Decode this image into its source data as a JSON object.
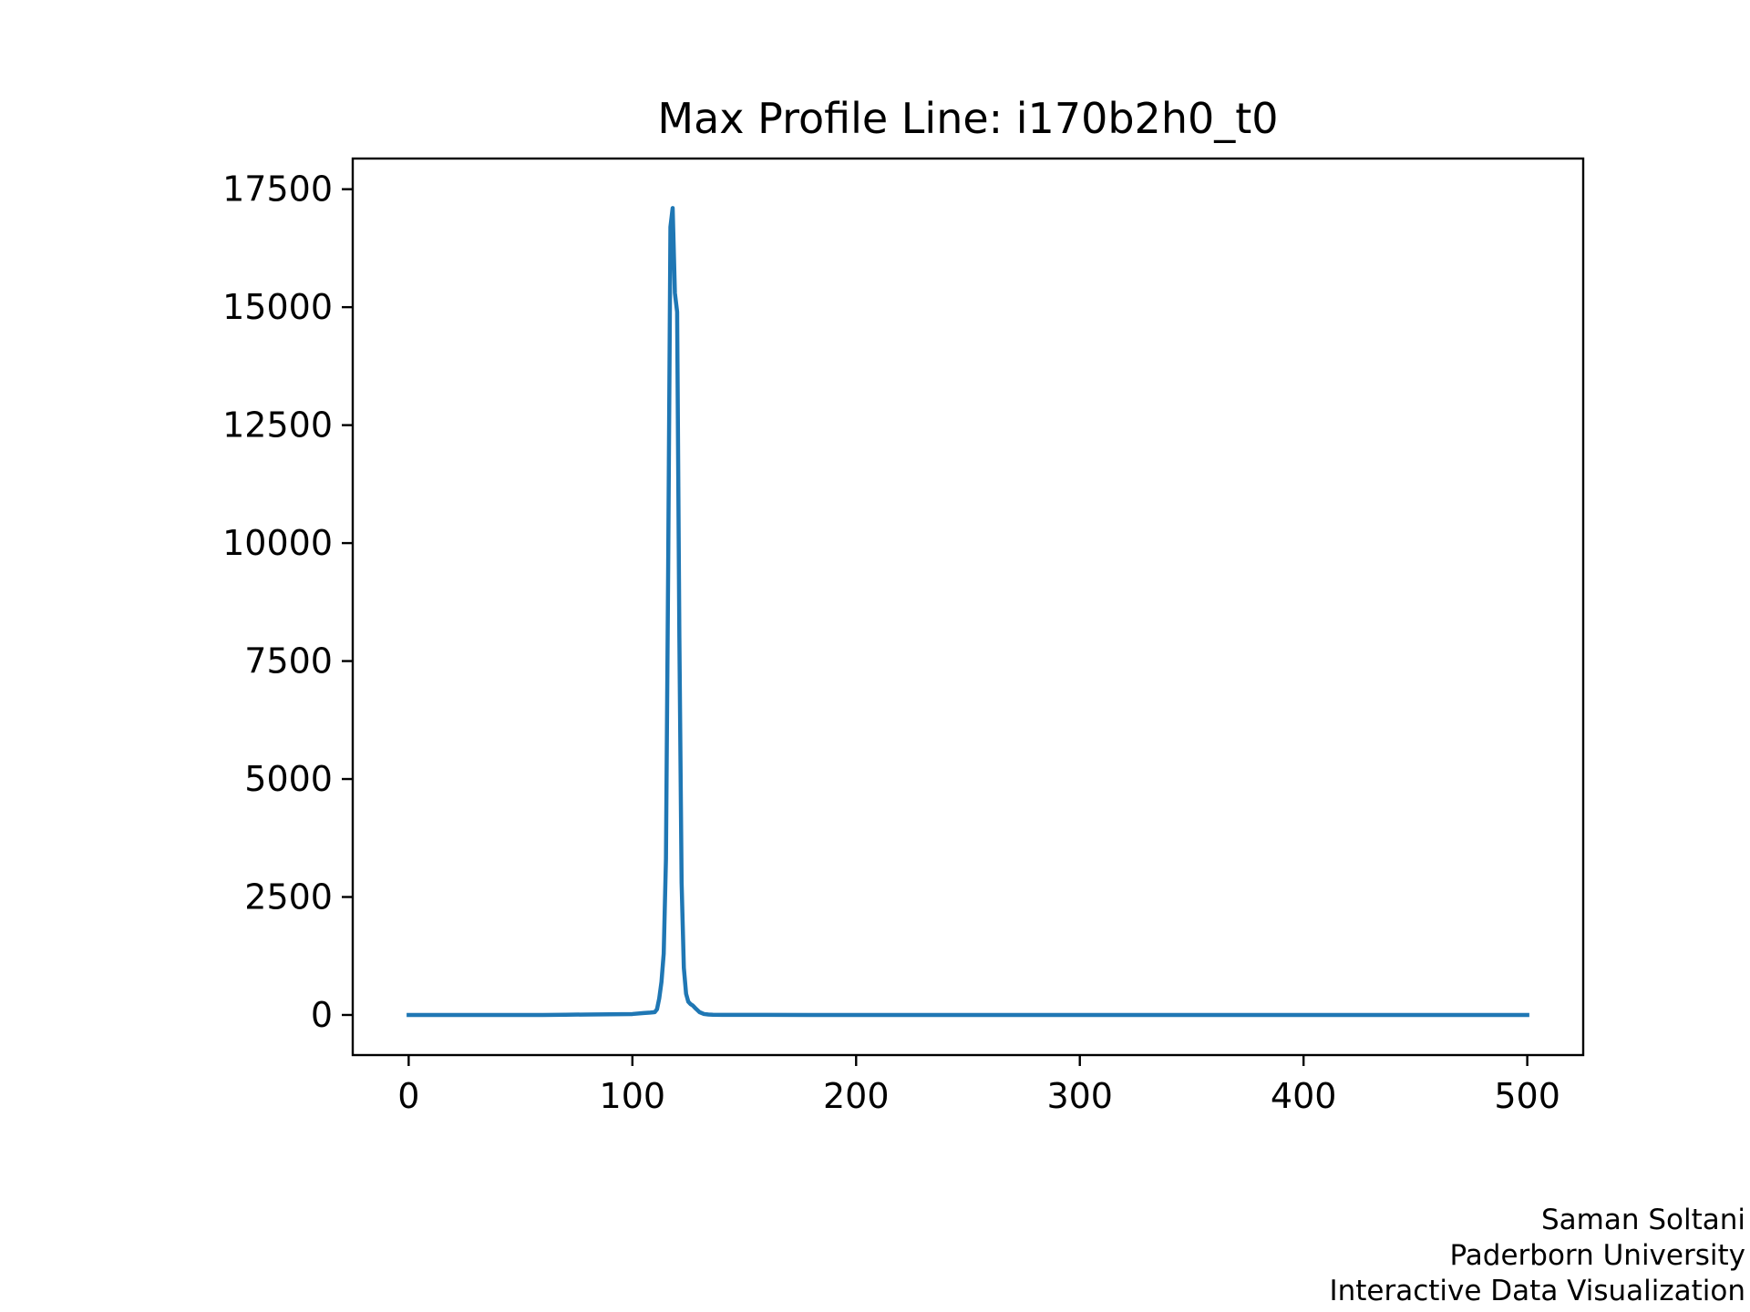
{
  "chart_data": {
    "type": "line",
    "title": "Max Profile Line: i170b2h0_t0",
    "xlabel": "",
    "ylabel": "",
    "xlim": [
      -25,
      525
    ],
    "ylim": [
      -850,
      18150
    ],
    "x_ticks": [
      0,
      100,
      200,
      300,
      400,
      500
    ],
    "y_ticks": [
      0,
      2500,
      5000,
      7500,
      10000,
      12500,
      15000,
      17500
    ],
    "grid": false,
    "line_color": "#1f77b4",
    "series": [
      {
        "x": [
          0,
          10,
          20,
          30,
          40,
          50,
          60,
          70,
          80,
          90,
          100,
          105,
          108,
          110,
          111,
          112,
          113,
          114,
          115,
          116,
          117,
          118,
          119,
          120,
          121,
          122,
          123,
          124,
          125,
          126,
          127,
          128,
          130,
          132,
          134,
          136,
          140,
          150,
          160,
          180,
          200,
          250,
          300,
          350,
          400,
          450,
          500
        ],
        "y": [
          0,
          0,
          0,
          0,
          0,
          0,
          0,
          5,
          10,
          15,
          20,
          40,
          50,
          60,
          120,
          350,
          700,
          1300,
          3300,
          9500,
          16700,
          17100,
          15300,
          14900,
          8000,
          2800,
          1000,
          450,
          280,
          230,
          200,
          150,
          60,
          20,
          10,
          5,
          3,
          2,
          1,
          0,
          0,
          0,
          0,
          0,
          0,
          0,
          0
        ]
      }
    ]
  },
  "credits": {
    "line1": "Saman Soltani",
    "line2": "Paderborn University",
    "line3": "Interactive Data Visualization"
  }
}
